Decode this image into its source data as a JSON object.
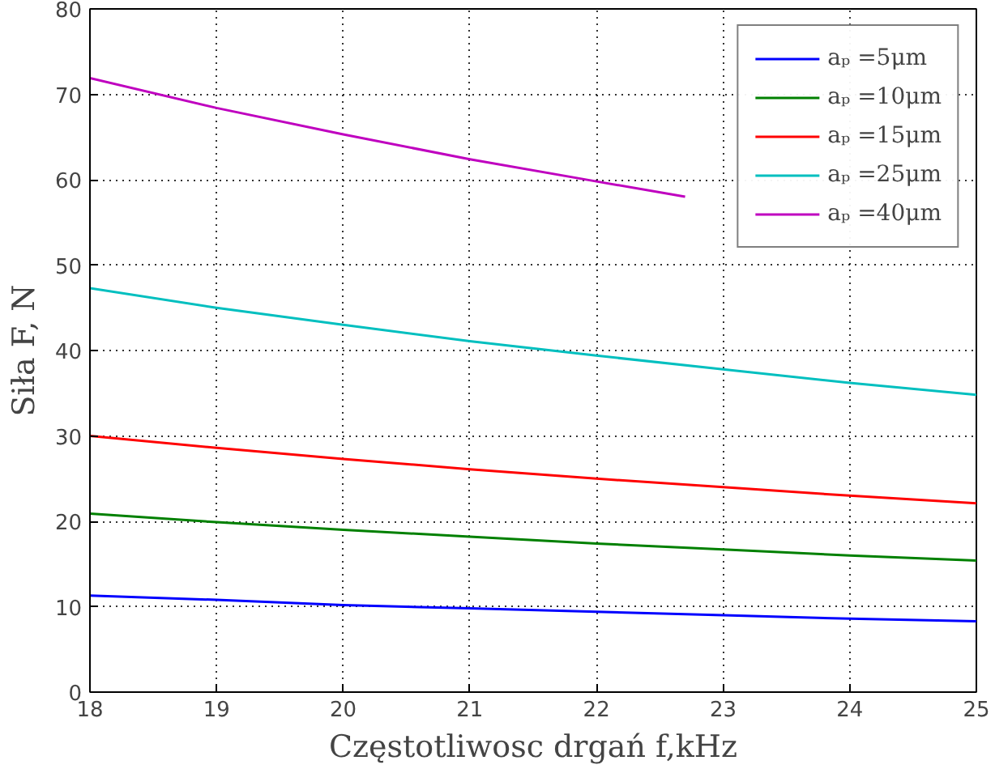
{
  "chart_data": {
    "type": "line",
    "xlabel": "Częstotliwosc drgań f,kHz",
    "ylabel": "Siła F, N",
    "x": [
      18,
      19,
      20,
      21,
      22,
      23,
      24,
      25
    ],
    "series": [
      {
        "name": "aₚ =5μm",
        "color": "#0000ff",
        "values": [
          11.3,
          10.8,
          10.2,
          9.8,
          9.4,
          9.0,
          8.6,
          8.3
        ]
      },
      {
        "name": "aₚ =10μm",
        "color": "#008000",
        "values": [
          20.9,
          19.9,
          19.0,
          18.2,
          17.4,
          16.7,
          16.0,
          15.4
        ]
      },
      {
        "name": "aₚ =15μm",
        "color": "#ff0000",
        "values": [
          30.0,
          28.6,
          27.3,
          26.1,
          25.0,
          24.0,
          23.0,
          22.1
        ]
      },
      {
        "name": "aₚ =25μm",
        "color": "#00bfbf",
        "values": [
          47.3,
          45.0,
          43.0,
          41.1,
          39.4,
          37.8,
          36.2,
          34.8
        ]
      },
      {
        "name": "aₚ =40μm",
        "color": "#bf00bf",
        "x": [
          18,
          19,
          20,
          21,
          22,
          22.7
        ],
        "values": [
          71.9,
          68.4,
          65.3,
          62.4,
          59.8,
          58.0
        ]
      }
    ],
    "xlim": [
      18,
      25
    ],
    "ylim": [
      0,
      80
    ],
    "xticks": [
      18,
      19,
      20,
      21,
      22,
      23,
      24,
      25
    ],
    "yticks": [
      0,
      10,
      20,
      30,
      40,
      50,
      60,
      70,
      80
    ],
    "grid": true,
    "legend": "top right",
    "line_style": "solid"
  }
}
